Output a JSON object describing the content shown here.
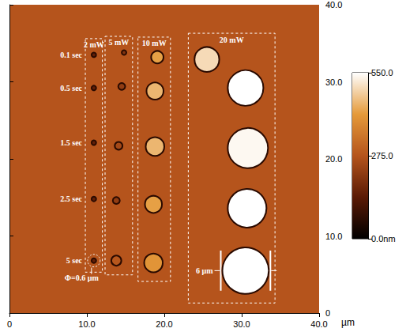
{
  "chart_data": {
    "type": "scatter",
    "xlabel": "µm",
    "xlim": [
      0,
      40
    ],
    "xticks": [
      0,
      {
        "value": 10,
        "label": "10.0"
      },
      {
        "value": 20,
        "label": "20.0"
      },
      {
        "value": 30,
        "label": "30.0"
      },
      {
        "value": 40,
        "label": "40.0"
      }
    ],
    "ylim": [
      0,
      40
    ],
    "yticks": [
      0,
      {
        "value": 10,
        "label": "10.0"
      },
      {
        "value": 20,
        "label": "20.0"
      },
      {
        "value": 30,
        "label": "30.0"
      },
      {
        "value": 40,
        "label": "40.0"
      }
    ],
    "grid": false,
    "times": [
      "0.1 sec",
      "0.5 sec",
      "1.5 sec",
      "2.5 sec",
      "5 sec"
    ],
    "series": [
      {
        "name": "2 mW",
        "x": [
          10.9,
          10.9,
          10.9,
          10.9,
          10.9
        ],
        "y": [
          33.5,
          29.2,
          22.1,
          14.8,
          6.8
        ],
        "diameter": [
          0.6,
          0.6,
          0.6,
          0.6,
          0.6
        ],
        "height": [
          150,
          150,
          150,
          150,
          150
        ]
      },
      {
        "name": "5 mW",
        "x": [
          14.8,
          14.5,
          14.1,
          13.8,
          13.8
        ],
        "y": [
          33.8,
          29.4,
          21.7,
          14.6,
          6.8
        ],
        "diameter": [
          0.6,
          0.9,
          1.0,
          0.9,
          1.3
        ],
        "height": [
          200,
          220,
          250,
          220,
          280
        ]
      },
      {
        "name": "10 mW",
        "x": [
          19.1,
          18.8,
          18.8,
          18.6,
          18.6
        ],
        "y": [
          33.2,
          28.8,
          21.6,
          14.1,
          6.5
        ],
        "diameter": [
          1.6,
          2.2,
          2.4,
          2.2,
          2.4
        ],
        "height": [
          420,
          450,
          450,
          420,
          400
        ]
      },
      {
        "name": "20 mW",
        "x": [
          25.5,
          30.5,
          30.8,
          30.7,
          30.5
        ],
        "y": [
          32.9,
          29.2,
          21.4,
          13.6,
          5.5
        ],
        "diameter": [
          3.2,
          4.6,
          5.2,
          5.0,
          6.0
        ],
        "height": [
          500,
          550,
          540,
          550,
          550
        ]
      }
    ],
    "colorbar": {
      "range": [
        0,
        550
      ],
      "ticks": [
        {
          "value": 0,
          "label": "0.0nm"
        },
        {
          "value": 275,
          "label": "275.0"
        },
        {
          "value": 550,
          "label": "550.0"
        }
      ]
    },
    "annotations": [
      {
        "text": "Φ=0.6 µm",
        "series": "2 mW",
        "time": "5 sec"
      },
      {
        "text": "6 µm",
        "series": "20 mW",
        "time": "5 sec"
      }
    ]
  }
}
